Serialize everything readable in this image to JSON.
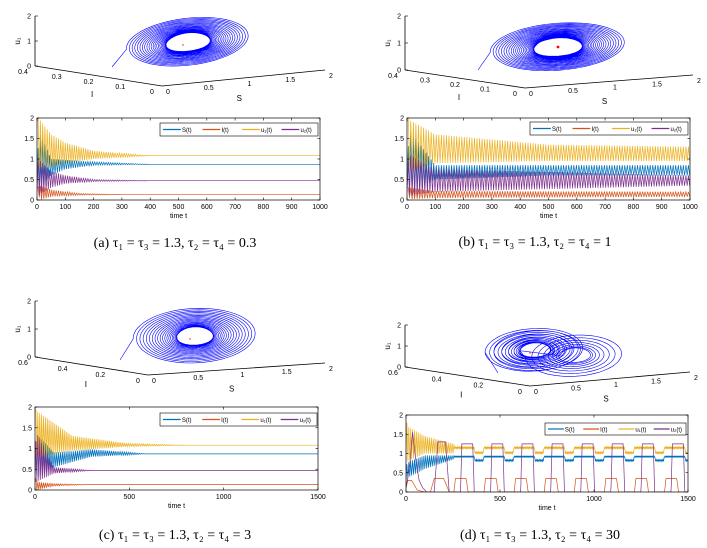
{
  "colors": {
    "S": "#0072BD",
    "I": "#D95319",
    "u1": "#EDB120",
    "u2": "#7E2F8E",
    "phase": "#0000FF",
    "equilibrium": "#FF0000"
  },
  "legend": {
    "S": "S(t)",
    "I": "I(t)",
    "u1": "u₁(t)",
    "u2": "u₂(t)"
  },
  "phase_axes": {
    "x_label": "S",
    "y_label": "I",
    "z_label": "u₁",
    "z_ticks": [
      "0",
      "1",
      "2"
    ],
    "s_ticks": [
      "0",
      "0.5",
      "1",
      "1.5",
      "2"
    ]
  },
  "time_axis_label": "time t",
  "chart_data": [
    {
      "id": "a",
      "caption": "(a)  τ₁ = τ₃ = 1.3, τ₂ = τ₄ = 0.3",
      "phase": {
        "type": "line3d",
        "i_ticks": [
          "0.4",
          "0.3",
          "0.2",
          "0.1",
          "0"
        ],
        "behaviour": "spiral converging to equilibrium"
      },
      "timeseries": {
        "type": "line",
        "xlim": [
          0,
          1000
        ],
        "ylim": [
          0,
          2
        ],
        "x_ticks": [
          "0",
          "100",
          "200",
          "300",
          "400",
          "500",
          "600",
          "700",
          "800",
          "900",
          "1000"
        ],
        "y_ticks": [
          "0",
          "0.5",
          "1",
          "1.5",
          "2"
        ],
        "legend": "top-right",
        "series": {
          "S": {
            "t": [
              0,
              10,
              50,
              100,
              200,
              400,
              1000
            ],
            "min": [
              0.2,
              0.3,
              0.6,
              0.75,
              0.85,
              0.87,
              0.87
            ],
            "max": [
              1.0,
              1.65,
              1.0,
              0.98,
              0.93,
              0.87,
              0.87
            ]
          },
          "I": {
            "t": [
              0,
              10,
              50,
              150,
              300,
              1000
            ],
            "min": [
              0.3,
              0,
              0.08,
              0.12,
              0.13,
              0.13
            ],
            "max": [
              0.3,
              0.35,
              0.25,
              0.16,
              0.13,
              0.13
            ]
          },
          "u1": {
            "t": [
              0,
              5,
              50,
              100,
              200,
              400,
              1000
            ],
            "min": [
              1.9,
              0.8,
              0.8,
              0.9,
              1.0,
              1.08,
              1.08
            ],
            "max": [
              2.0,
              2.0,
              1.6,
              1.4,
              1.2,
              1.08,
              1.08
            ]
          },
          "u2": {
            "t": [
              0,
              5,
              50,
              100,
              200,
              400,
              1000
            ],
            "min": [
              0.2,
              0.1,
              0.3,
              0.4,
              0.45,
              0.47,
              0.47
            ],
            "max": [
              0.8,
              1.0,
              0.7,
              0.6,
              0.5,
              0.47,
              0.47
            ]
          }
        }
      }
    },
    {
      "id": "b",
      "caption": "(b)  τ₁ = τ₃ = 1.3, τ₂ = τ₄ = 1",
      "phase": {
        "type": "line3d",
        "i_ticks": [
          "0.4",
          "0.3",
          "0.2",
          "0.1",
          "0"
        ],
        "behaviour": "limit cycle around unstable equilibrium"
      },
      "timeseries": {
        "type": "line",
        "xlim": [
          0,
          1000
        ],
        "ylim": [
          0,
          2
        ],
        "x_ticks": [
          "0",
          "100",
          "200",
          "300",
          "400",
          "500",
          "600",
          "700",
          "800",
          "900",
          "1000"
        ],
        "y_ticks": [
          "0",
          "0.5",
          "1",
          "1.5",
          "2"
        ],
        "legend": "top-right",
        "series": {
          "S": {
            "t": [
              0,
              10,
              100,
              500,
              1000
            ],
            "min": [
              0.2,
              0.1,
              0.5,
              0.6,
              0.6
            ],
            "max": [
              1.0,
              1.7,
              0.85,
              0.85,
              0.85
            ]
          },
          "I": {
            "t": [
              0,
              10,
              100,
              1000
            ],
            "min": [
              0.3,
              0.02,
              0.05,
              0.08
            ],
            "max": [
              0.3,
              0.3,
              0.22,
              0.2
            ]
          },
          "u1": {
            "t": [
              0,
              10,
              100,
              500,
              1000
            ],
            "min": [
              1.9,
              0.7,
              0.9,
              0.95,
              0.95
            ],
            "max": [
              2.0,
              1.95,
              1.6,
              1.35,
              1.3
            ]
          },
          "u2": {
            "t": [
              0,
              10,
              100,
              1000
            ],
            "min": [
              0.2,
              0.1,
              0.2,
              0.35
            ],
            "max": [
              0.8,
              1.1,
              0.75,
              0.6
            ]
          }
        }
      }
    },
    {
      "id": "c",
      "caption": "(c)  τ₁ = τ₃ = 1.3, τ₂ = τ₄ = 3",
      "phase": {
        "type": "line3d",
        "i_ticks": [
          "0.6",
          "0.4",
          "0.2",
          "0"
        ],
        "behaviour": "spiral converging to equilibrium"
      },
      "timeseries": {
        "type": "line",
        "xlim": [
          0,
          1500
        ],
        "ylim": [
          0,
          2
        ],
        "x_ticks": [
          "0",
          "500",
          "1000",
          "1500"
        ],
        "y_ticks": [
          "0",
          "0.5",
          "1",
          "1.5",
          "2"
        ],
        "legend": "top-right",
        "series": {
          "S": {
            "t": [
              0,
              10,
              100,
              300,
              600,
              1500
            ],
            "min": [
              0.2,
              0.3,
              0.55,
              0.8,
              0.87,
              0.87
            ],
            "max": [
              1.0,
              1.35,
              0.9,
              0.98,
              0.87,
              0.87
            ]
          },
          "I": {
            "t": [
              0,
              10,
              100,
              300,
              1500
            ],
            "min": [
              0.3,
              0,
              0.1,
              0.13,
              0.13
            ],
            "max": [
              0.3,
              0.2,
              0.15,
              0.13,
              0.13
            ]
          },
          "u1": {
            "t": [
              0,
              10,
              200,
              500,
              800,
              1500
            ],
            "min": [
              1.9,
              0.8,
              0.95,
              1.05,
              1.08,
              1.08
            ],
            "max": [
              1.95,
              1.9,
              1.3,
              1.12,
              1.08,
              1.08
            ]
          },
          "u2": {
            "t": [
              0,
              10,
              100,
              300,
              1500
            ],
            "min": [
              0.2,
              0.2,
              0.4,
              0.47,
              0.47
            ],
            "max": [
              1.0,
              1.35,
              0.55,
              0.47,
              0.47
            ]
          }
        }
      }
    },
    {
      "id": "d",
      "caption": "(d)  τ₁ = τ₃ = 1.3, τ₂ = τ₄ = 30",
      "phase": {
        "type": "line3d",
        "i_ticks": [
          "0.6",
          "0.4",
          "0.2",
          "0"
        ],
        "behaviour": "double-lobed periodic orbit"
      },
      "timeseries": {
        "type": "line",
        "xlim": [
          0,
          1500
        ],
        "ylim": [
          0,
          2
        ],
        "x_ticks": [
          "0",
          "500",
          "1000",
          "1500"
        ],
        "y_ticks": [
          "0",
          "0.5",
          "1",
          "1.5",
          "2"
        ],
        "legend": "top-right",
        "periodic_from": 255,
        "period": 160,
        "series": {
          "S": {
            "t": [
              0,
              20,
              100,
              255
            ],
            "min": [
              0.3,
              0.4,
              0.6,
              0.85
            ],
            "max": [
              0.7,
              0.8,
              0.95,
              0.95
            ],
            "cycle": [
              [
                0,
                0.92
              ],
              [
                108,
                0.92
              ],
              [
                112,
                0.82
              ],
              [
                155,
                0.82
              ],
              [
                160,
                0.92
              ]
            ]
          },
          "I": {
            "t": [
              0,
              10,
              30,
              60,
              100,
              130,
              150,
              200,
              230,
              255
            ],
            "min": [
              0.1,
              0.3,
              0.3,
              0.05,
              0,
              0,
              0.35,
              0.35,
              0,
              0
            ],
            "max": [
              0.1,
              0.3,
              0.3,
              0.05,
              0,
              0,
              0.35,
              0.35,
              0,
              0
            ],
            "cycle": [
              [
                0,
                0
              ],
              [
                8,
                0.35
              ],
              [
                65,
                0.35
              ],
              [
                75,
                0
              ],
              [
                160,
                0
              ]
            ]
          },
          "u1": {
            "t": [
              0,
              10,
              100,
              255
            ],
            "min": [
              1.0,
              0.8,
              1.0,
              1.0
            ],
            "max": [
              1.9,
              1.7,
              1.45,
              1.25
            ],
            "cycle": [
              [
                0,
                1.15
              ],
              [
                108,
                1.15
              ],
              [
                112,
                1.02
              ],
              [
                155,
                1.02
              ],
              [
                160,
                1.15
              ]
            ]
          },
          "u2": {
            "t": [
              0,
              20,
              35,
              50,
              70,
              90,
              110,
              150,
              170,
              210,
              230,
              255
            ],
            "min": [
              0.1,
              0.7,
              1.55,
              0.9,
              0.3,
              0.1,
              0,
              0,
              1.3,
              1.3,
              0,
              0
            ],
            "max": [
              0.1,
              0.7,
              1.55,
              0.9,
              0.3,
              0.1,
              0,
              0,
              1.3,
              1.3,
              0,
              0
            ],
            "cycle": [
              [
                0,
                0
              ],
              [
                35,
                0
              ],
              [
                42,
                1.25
              ],
              [
                100,
                1.25
              ],
              [
                108,
                0
              ],
              [
                160,
                0
              ]
            ]
          }
        }
      }
    }
  ]
}
